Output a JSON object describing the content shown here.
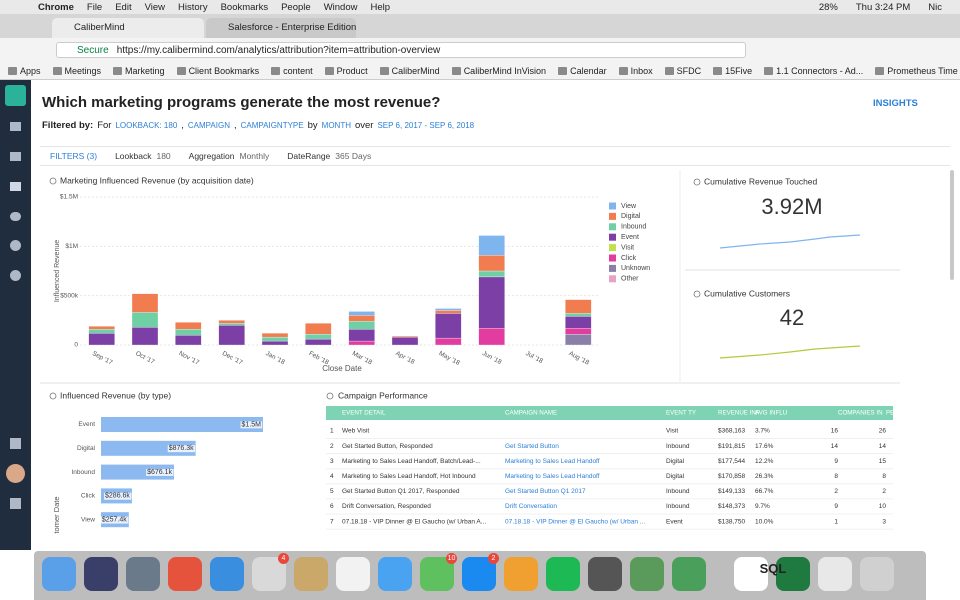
{
  "menu_bar": {
    "app": "Chrome",
    "items": [
      "File",
      "Edit",
      "View",
      "History",
      "Bookmarks",
      "People",
      "Window",
      "Help"
    ],
    "battery": "28%",
    "clock": "Thu 3:24 PM",
    "user": "Nic"
  },
  "tabs": [
    "CaliberMind",
    "Salesforce - Enterprise Edition"
  ],
  "address_bar": {
    "secure": "Secure",
    "url": "https://my.calibermind.com/analytics/attribution?item=attribution-overview"
  },
  "bookmarks": [
    "Apps",
    "Meetings",
    "Marketing",
    "Client Bookmarks",
    "content",
    "Product",
    "CaliberMind",
    "CaliberMind InVision",
    "Calendar",
    "Inbox",
    "SFDC",
    "15Five",
    "1.1 Connectors - Ad...",
    "Prometheus Time S..."
  ],
  "header": {
    "title": "Which marketing programs generate the most revenue?",
    "insights": "INSIGHTS",
    "filtered_by": [
      {
        "text": "Filtered by:",
        "strong": true
      },
      {
        "text": "For"
      },
      {
        "text": "LOOKBACK: 180",
        "link": true
      },
      {
        "text": ","
      },
      {
        "text": "CAMPAIGN",
        "link": true
      },
      {
        "text": ","
      },
      {
        "text": "CAMPAIGNTYPE",
        "link": true
      },
      {
        "text": "by"
      },
      {
        "text": "MONTH",
        "link": true
      },
      {
        "text": "over"
      },
      {
        "text": "SEP 6, 2017 - SEP 6, 2018",
        "link": true
      }
    ]
  },
  "filters": {
    "toggle": "FILTERS (3)",
    "items": [
      {
        "label": "Lookback",
        "value": "180"
      },
      {
        "label": "Aggregation",
        "value": "Monthly"
      },
      {
        "label": "DateRange",
        "value": "365 Days"
      }
    ]
  },
  "chart_data": [
    {
      "type": "bar",
      "stacked": true,
      "title": "Marketing Influenced Revenue (by acquisition date)",
      "y_label": "Influenced Revenue",
      "x_label": "Close Date",
      "categories": [
        "Sep '17",
        "Oct '17",
        "Nov '17",
        "Dec '17",
        "Jan '18",
        "Feb '18",
        "Mar '18",
        "Apr '18",
        "May '18",
        "Jun '18",
        "Jul '18",
        "Aug '18"
      ],
      "series": [
        {
          "name": "View",
          "color": "#7fb5ef",
          "values": [
            0,
            0,
            0,
            0,
            0,
            0,
            40000,
            0,
            20000,
            200000,
            0,
            0
          ]
        },
        {
          "name": "Digital",
          "color": "#f07c50",
          "values": [
            30000,
            190000,
            70000,
            30000,
            40000,
            110000,
            60000,
            10000,
            30000,
            160000,
            0,
            140000
          ]
        },
        {
          "name": "Inbound",
          "color": "#6fcfa5",
          "values": [
            40000,
            150000,
            60000,
            20000,
            40000,
            50000,
            80000,
            0,
            0,
            60000,
            0,
            30000
          ]
        },
        {
          "name": "Event",
          "color": "#7b3fa6",
          "values": [
            120000,
            180000,
            100000,
            200000,
            40000,
            60000,
            120000,
            80000,
            250000,
            520000,
            0,
            120000
          ]
        },
        {
          "name": "Visit",
          "color": "#c3e04a",
          "values": [
            0,
            0,
            0,
            0,
            0,
            0,
            0,
            0,
            0,
            0,
            0,
            0
          ]
        },
        {
          "name": "Click",
          "color": "#e23ca0",
          "values": [
            0,
            0,
            0,
            0,
            0,
            0,
            40000,
            0,
            70000,
            170000,
            0,
            60000
          ]
        },
        {
          "name": "Unknown",
          "color": "#8a7fa6",
          "values": [
            0,
            0,
            0,
            0,
            0,
            0,
            0,
            0,
            0,
            0,
            0,
            110000
          ]
        },
        {
          "name": "Other",
          "color": "#eaa2c4",
          "values": [
            0,
            0,
            0,
            0,
            0,
            0,
            0,
            0,
            0,
            0,
            0,
            0
          ]
        }
      ],
      "ylim": [
        0,
        1500000
      ],
      "yticks": [
        {
          "value": 0,
          "label": "0"
        },
        {
          "value": 500000,
          "label": "$500k"
        },
        {
          "value": 1000000,
          "label": "$1M"
        },
        {
          "value": 1500000,
          "label": "$1.5M"
        }
      ],
      "grid": true,
      "legend": "right"
    },
    {
      "type": "bar",
      "horizontal": true,
      "title": "Influenced Revenue (by type)",
      "y_label": "tomer Date",
      "color": "#8cb9f0",
      "categories": [
        "Event",
        "Digital",
        "Inbound",
        "Click",
        "View"
      ],
      "values": [
        1500000,
        876300,
        676100,
        286600,
        257400
      ],
      "value_labels": [
        "$1.5M",
        "$876.3k",
        "$676.1k",
        "$286.6k",
        "$257.4k"
      ]
    }
  ],
  "kpis": [
    {
      "title": "Cumulative Revenue Touched",
      "value": "3.92M"
    },
    {
      "title": "Cumulative Customers",
      "value": "42"
    }
  ],
  "table": {
    "title": "Campaign Performance",
    "columns": [
      "EVENT DETAIL",
      "CAMPAIGN NAME",
      "EVENT TY",
      "REVENUE INF",
      "AVG INFLU",
      "COMPANIES IN",
      "PEOPLE INF"
    ],
    "rows": [
      [
        "1",
        "Web Visit",
        null,
        "Visit",
        "$368,163",
        "3.7%",
        "16",
        "26"
      ],
      [
        "2",
        "Get Started Button, Responded",
        "Get Started Button",
        "Inbound",
        "$191,815",
        "17.6%",
        "14",
        "14"
      ],
      [
        "3",
        "Marketing to Sales Lead Handoff, Batch/Lead-...",
        "Marketing to Sales Lead Handoff",
        "Digital",
        "$177,544",
        "12.2%",
        "9",
        "15"
      ],
      [
        "4",
        "Marketing to Sales Lead Handoff, Hot Inbound",
        "Marketing to Sales Lead Handoff",
        "Digital",
        "$170,858",
        "26.3%",
        "8",
        "8"
      ],
      [
        "5",
        "Get Started Button Q1 2017, Responded",
        "Get Started Button Q1 2017",
        "Inbound",
        "$149,133",
        "66.7%",
        "2",
        "2"
      ],
      [
        "6",
        "Drift Conversation, Responded",
        "Drift Conversation",
        "Inbound",
        "$148,373",
        "9.7%",
        "9",
        "10"
      ],
      [
        "7",
        "07.18.18 - VIP Dinner @ El Gaucho (w/ Urban A...",
        "07.18.18 - VIP Dinner @ El Gaucho (w/ Urban ...",
        "Event",
        "$138,750",
        "10.0%",
        "1",
        "3"
      ]
    ]
  },
  "dock": {
    "badges": [
      "4",
      "10",
      "2"
    ],
    "sql_icon": "SQL"
  }
}
